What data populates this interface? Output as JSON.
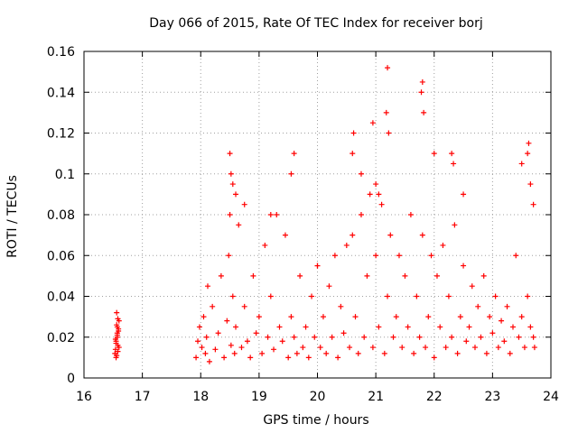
{
  "chart_data": {
    "type": "scatter",
    "title": "Day 066 of 2015, Rate Of TEC Index for receiver borj",
    "xlabel": "GPS time / hours",
    "ylabel": "ROTI / TECUs",
    "xlim": [
      16,
      24
    ],
    "ylim": [
      0,
      0.16
    ],
    "x_ticks": [
      16,
      17,
      18,
      19,
      20,
      21,
      22,
      23,
      24
    ],
    "y_ticks": [
      0,
      0.02,
      0.04,
      0.06,
      0.08,
      0.1,
      0.12,
      0.14,
      0.16
    ],
    "x_tick_labels": [
      "16",
      "17",
      "18",
      "19",
      "20",
      "21",
      "22",
      "23",
      "24"
    ],
    "y_tick_labels": [
      "0",
      "0.02",
      "0.04",
      "0.06",
      "0.08",
      "0.1",
      "0.12",
      "0.14",
      "0.16"
    ],
    "grid": true,
    "marker": "+",
    "marker_color": "#ff0000",
    "series": [
      {
        "name": "ROTI",
        "x": [
          16.53,
          16.55,
          16.57,
          16.58,
          16.6,
          16.56,
          16.54,
          16.59,
          16.55,
          16.57,
          16.56,
          16.58,
          16.54,
          16.6,
          16.57,
          16.55,
          16.58,
          16.56,
          16.59,
          16.57,
          17.92,
          17.95,
          17.98,
          18.02,
          18.05,
          18.08,
          18.1,
          18.12,
          18.15,
          18.2,
          18.25,
          18.3,
          18.35,
          18.4,
          18.45,
          18.48,
          18.5,
          18.52,
          18.55,
          18.58,
          18.6,
          18.65,
          18.7,
          18.75,
          18.8,
          18.85,
          18.9,
          18.95,
          19.0,
          19.05,
          19.1,
          19.15,
          19.2,
          19.25,
          19.3,
          19.35,
          19.4,
          19.45,
          19.5,
          19.55,
          19.6,
          19.65,
          19.7,
          19.75,
          19.8,
          19.85,
          19.9,
          19.95,
          20.0,
          20.05,
          20.1,
          20.15,
          20.2,
          20.25,
          20.3,
          20.35,
          20.4,
          20.45,
          20.5,
          20.55,
          20.6,
          20.65,
          20.7,
          20.75,
          20.8,
          20.85,
          20.9,
          20.95,
          21.0,
          21.05,
          21.1,
          21.15,
          21.2,
          21.25,
          21.3,
          21.35,
          21.4,
          21.45,
          21.5,
          21.55,
          21.6,
          21.65,
          21.7,
          21.75,
          21.8,
          21.85,
          21.9,
          21.95,
          22.0,
          22.05,
          22.1,
          22.15,
          22.2,
          22.25,
          22.3,
          22.35,
          22.4,
          22.45,
          22.5,
          22.55,
          22.6,
          22.65,
          22.7,
          22.75,
          22.8,
          22.85,
          22.9,
          22.95,
          23.0,
          23.05,
          23.1,
          23.15,
          23.2,
          23.25,
          23.3,
          23.35,
          23.4,
          23.45,
          23.5,
          23.55,
          23.6,
          23.65,
          23.7,
          23.72,
          18.5,
          18.52,
          18.55,
          18.6,
          18.75,
          19.55,
          19.6,
          20.6,
          20.62,
          20.75,
          20.95,
          21.18,
          21.2,
          21.22,
          21.78,
          21.8,
          21.82,
          22.3,
          22.33,
          23.5,
          23.6,
          23.62,
          23.65,
          23.7,
          21.0,
          21.05,
          20.0,
          19.2,
          22.0,
          22.5
        ],
        "y": [
          0.012,
          0.018,
          0.022,
          0.016,
          0.028,
          0.032,
          0.014,
          0.024,
          0.01,
          0.02,
          0.026,
          0.013,
          0.019,
          0.015,
          0.021,
          0.017,
          0.029,
          0.011,
          0.023,
          0.025,
          0.01,
          0.018,
          0.025,
          0.015,
          0.03,
          0.012,
          0.02,
          0.045,
          0.008,
          0.035,
          0.014,
          0.022,
          0.05,
          0.01,
          0.028,
          0.06,
          0.08,
          0.016,
          0.04,
          0.012,
          0.025,
          0.075,
          0.015,
          0.035,
          0.018,
          0.01,
          0.05,
          0.022,
          0.03,
          0.012,
          0.065,
          0.02,
          0.04,
          0.014,
          0.08,
          0.025,
          0.018,
          0.07,
          0.01,
          0.03,
          0.02,
          0.012,
          0.05,
          0.015,
          0.025,
          0.01,
          0.04,
          0.02,
          0.055,
          0.015,
          0.03,
          0.012,
          0.045,
          0.02,
          0.06,
          0.01,
          0.035,
          0.022,
          0.065,
          0.015,
          0.07,
          0.03,
          0.012,
          0.08,
          0.02,
          0.05,
          0.09,
          0.015,
          0.06,
          0.025,
          0.085,
          0.012,
          0.04,
          0.07,
          0.02,
          0.03,
          0.06,
          0.015,
          0.05,
          0.025,
          0.08,
          0.012,
          0.04,
          0.02,
          0.07,
          0.015,
          0.03,
          0.06,
          0.01,
          0.05,
          0.025,
          0.065,
          0.015,
          0.04,
          0.02,
          0.075,
          0.012,
          0.03,
          0.055,
          0.018,
          0.025,
          0.045,
          0.015,
          0.035,
          0.02,
          0.05,
          0.012,
          0.03,
          0.022,
          0.04,
          0.015,
          0.028,
          0.018,
          0.035,
          0.012,
          0.025,
          0.06,
          0.02,
          0.03,
          0.015,
          0.04,
          0.025,
          0.02,
          0.015,
          0.11,
          0.1,
          0.095,
          0.09,
          0.085,
          0.1,
          0.11,
          0.11,
          0.12,
          0.1,
          0.125,
          0.13,
          0.152,
          0.12,
          0.14,
          0.145,
          0.13,
          0.11,
          0.105,
          0.105,
          0.11,
          0.115,
          0.095,
          0.085,
          0.095,
          0.09,
          0.055,
          0.08,
          0.11,
          0.09
        ]
      }
    ]
  }
}
